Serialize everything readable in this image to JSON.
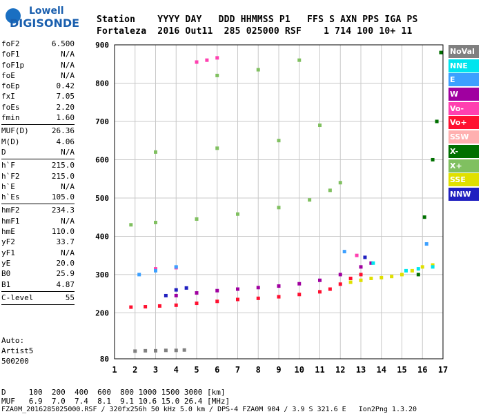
{
  "logo": {
    "line1": "Lowell",
    "line2": "DIGISONDE"
  },
  "header": {
    "row1": "Station    YYYY DAY   DDD HHMMSS P1   FFS S AXN PPS IGA PS",
    "row2": "Fortaleza  2016 Out11  285 025000 RSF    1 714 100 10+ 11"
  },
  "params": [
    {
      "label": "foF2",
      "value": "6.500",
      "sep": false
    },
    {
      "label": "foF1",
      "value": "N/A",
      "sep": false
    },
    {
      "label": "foF1p",
      "value": "N/A",
      "sep": false
    },
    {
      "label": "foE",
      "value": "N/A",
      "sep": false
    },
    {
      "label": "foEp",
      "value": "0.42",
      "sep": false
    },
    {
      "label": "fxI",
      "value": "7.05",
      "sep": false
    },
    {
      "label": "foEs",
      "value": "2.20",
      "sep": false
    },
    {
      "label": "fmin",
      "value": "1.60",
      "sep": true
    },
    {
      "label": "MUF(D)",
      "value": "26.36",
      "sep": false
    },
    {
      "label": "M(D)",
      "value": "4.06",
      "sep": false
    },
    {
      "label": "D",
      "value": "N/A",
      "sep": true
    },
    {
      "label": "h`F",
      "value": "215.0",
      "sep": false
    },
    {
      "label": "h`F2",
      "value": "215.0",
      "sep": false
    },
    {
      "label": "h`E",
      "value": "N/A",
      "sep": false
    },
    {
      "label": "h`Es",
      "value": "105.0",
      "sep": true
    },
    {
      "label": "hmF2",
      "value": "234.3",
      "sep": false
    },
    {
      "label": "hmF1",
      "value": "N/A",
      "sep": false
    },
    {
      "label": "hmE",
      "value": "110.0",
      "sep": false
    },
    {
      "label": "yF2",
      "value": "33.7",
      "sep": false
    },
    {
      "label": "yF1",
      "value": "N/A",
      "sep": false
    },
    {
      "label": "yE",
      "value": "20.0",
      "sep": false
    },
    {
      "label": "B0",
      "value": "25.9",
      "sep": false
    },
    {
      "label": "B1",
      "value": "4.87",
      "sep": true
    },
    {
      "label": "C-level",
      "value": "55",
      "sep": true
    }
  ],
  "auto": {
    "line1": "Auto:",
    "line2": "Artist5",
    "line3": "500200"
  },
  "footer": {
    "d_row": "D     100  200  400  600  800 1000 1500 3000 [km]",
    "muf_row": "MUF   6.9  7.0  7.4  8.1  9.1 10.6 15.0 26.4 [MHz]",
    "file_row": "FZA0M_2016285025000.RSF / 320fx256h 50 kHz 5.0 km / DPS-4 FZA0M 904 / 3.9 S 321.6 E   Ion2Png 1.3.20"
  },
  "legend": [
    {
      "label": "NoVal",
      "color": "#808080"
    },
    {
      "label": "NNE",
      "color": "#00e5ee"
    },
    {
      "label": "E",
      "color": "#3ca0ff"
    },
    {
      "label": "W",
      "color": "#a000a0"
    },
    {
      "label": "Vo-",
      "color": "#ff40b0"
    },
    {
      "label": "Vo+",
      "color": "#ff1030"
    },
    {
      "label": "SSW",
      "color": "#ffb0b0"
    },
    {
      "label": "X-",
      "color": "#007000"
    },
    {
      "label": "X+",
      "color": "#80c060"
    },
    {
      "label": "SSE",
      "color": "#e0e000"
    },
    {
      "label": "NNW",
      "color": "#2020c0"
    }
  ],
  "chart_data": {
    "type": "scatter",
    "xlabel": "",
    "ylabel": "",
    "xlim": [
      1,
      17
    ],
    "ylim": [
      80,
      900
    ],
    "x_ticks": [
      1,
      2,
      3,
      4,
      5,
      6,
      7,
      8,
      9,
      10,
      11,
      12,
      13,
      14,
      15,
      16,
      17
    ],
    "y_ticks": [
      80,
      200,
      300,
      400,
      500,
      600,
      700,
      800,
      900
    ],
    "grid": true,
    "series": [
      {
        "name": "Vo+",
        "color": "#ff1030",
        "points": [
          [
            1.8,
            215
          ],
          [
            2.5,
            216
          ],
          [
            3.2,
            218
          ],
          [
            4.0,
            220
          ],
          [
            5.0,
            225
          ],
          [
            6.0,
            230
          ],
          [
            7.0,
            235
          ],
          [
            8.0,
            238
          ],
          [
            9.0,
            242
          ],
          [
            10.0,
            248
          ],
          [
            11.0,
            255
          ],
          [
            11.5,
            262
          ],
          [
            12.0,
            275
          ],
          [
            12.5,
            290
          ],
          [
            13.0,
            300
          ]
        ]
      },
      {
        "name": "W",
        "color": "#a000a0",
        "points": [
          [
            4.0,
            245
          ],
          [
            5.0,
            252
          ],
          [
            6.0,
            258
          ],
          [
            7.0,
            262
          ],
          [
            8.0,
            266
          ],
          [
            9.0,
            270
          ],
          [
            10.0,
            276
          ],
          [
            11.0,
            285
          ],
          [
            12.0,
            300
          ],
          [
            13.0,
            320
          ],
          [
            13.5,
            330
          ]
        ]
      },
      {
        "name": "X+",
        "color": "#80c060",
        "points": [
          [
            1.8,
            430
          ],
          [
            3.0,
            436
          ],
          [
            5.0,
            445
          ],
          [
            7.0,
            458
          ],
          [
            9.0,
            475
          ],
          [
            10.5,
            495
          ],
          [
            11.5,
            520
          ],
          [
            12.0,
            540
          ],
          [
            3.0,
            620
          ],
          [
            6.0,
            630
          ],
          [
            9.0,
            650
          ],
          [
            11.0,
            690
          ],
          [
            6.0,
            820
          ],
          [
            8.0,
            835
          ],
          [
            10.0,
            860
          ]
        ]
      },
      {
        "name": "SSE",
        "color": "#e0e000",
        "points": [
          [
            12.5,
            280
          ],
          [
            13.0,
            285
          ],
          [
            13.5,
            290
          ],
          [
            14.0,
            292
          ],
          [
            14.5,
            295
          ],
          [
            15.0,
            300
          ],
          [
            15.5,
            310
          ],
          [
            16.0,
            320
          ],
          [
            16.5,
            325
          ]
        ]
      },
      {
        "name": "Vo-",
        "color": "#ff40b0",
        "points": [
          [
            5.0,
            855
          ],
          [
            5.5,
            860
          ],
          [
            6.0,
            866
          ],
          [
            3.0,
            315
          ],
          [
            4.0,
            318
          ],
          [
            12.8,
            350
          ]
        ]
      },
      {
        "name": "NNE",
        "color": "#00e5ee",
        "points": [
          [
            15.2,
            310
          ],
          [
            15.8,
            315
          ],
          [
            16.5,
            320
          ],
          [
            13.6,
            330
          ]
        ]
      },
      {
        "name": "E",
        "color": "#3ca0ff",
        "points": [
          [
            2.2,
            300
          ],
          [
            3.0,
            310
          ],
          [
            4.0,
            320
          ],
          [
            12.2,
            360
          ],
          [
            16.2,
            380
          ]
        ]
      },
      {
        "name": "NNW",
        "color": "#2020c0",
        "points": [
          [
            3.5,
            245
          ],
          [
            4.0,
            260
          ],
          [
            4.5,
            265
          ],
          [
            13.2,
            345
          ]
        ]
      },
      {
        "name": "X-",
        "color": "#007000",
        "points": [
          [
            15.8,
            300
          ],
          [
            16.1,
            450
          ],
          [
            16.5,
            600
          ],
          [
            16.7,
            700
          ],
          [
            16.9,
            880
          ]
        ]
      },
      {
        "name": "NoVal",
        "color": "#808080",
        "points": [
          [
            2.0,
            100
          ],
          [
            2.5,
            101
          ],
          [
            3.0,
            101
          ],
          [
            3.5,
            102
          ],
          [
            4.0,
            102
          ],
          [
            4.4,
            103
          ]
        ]
      }
    ]
  }
}
